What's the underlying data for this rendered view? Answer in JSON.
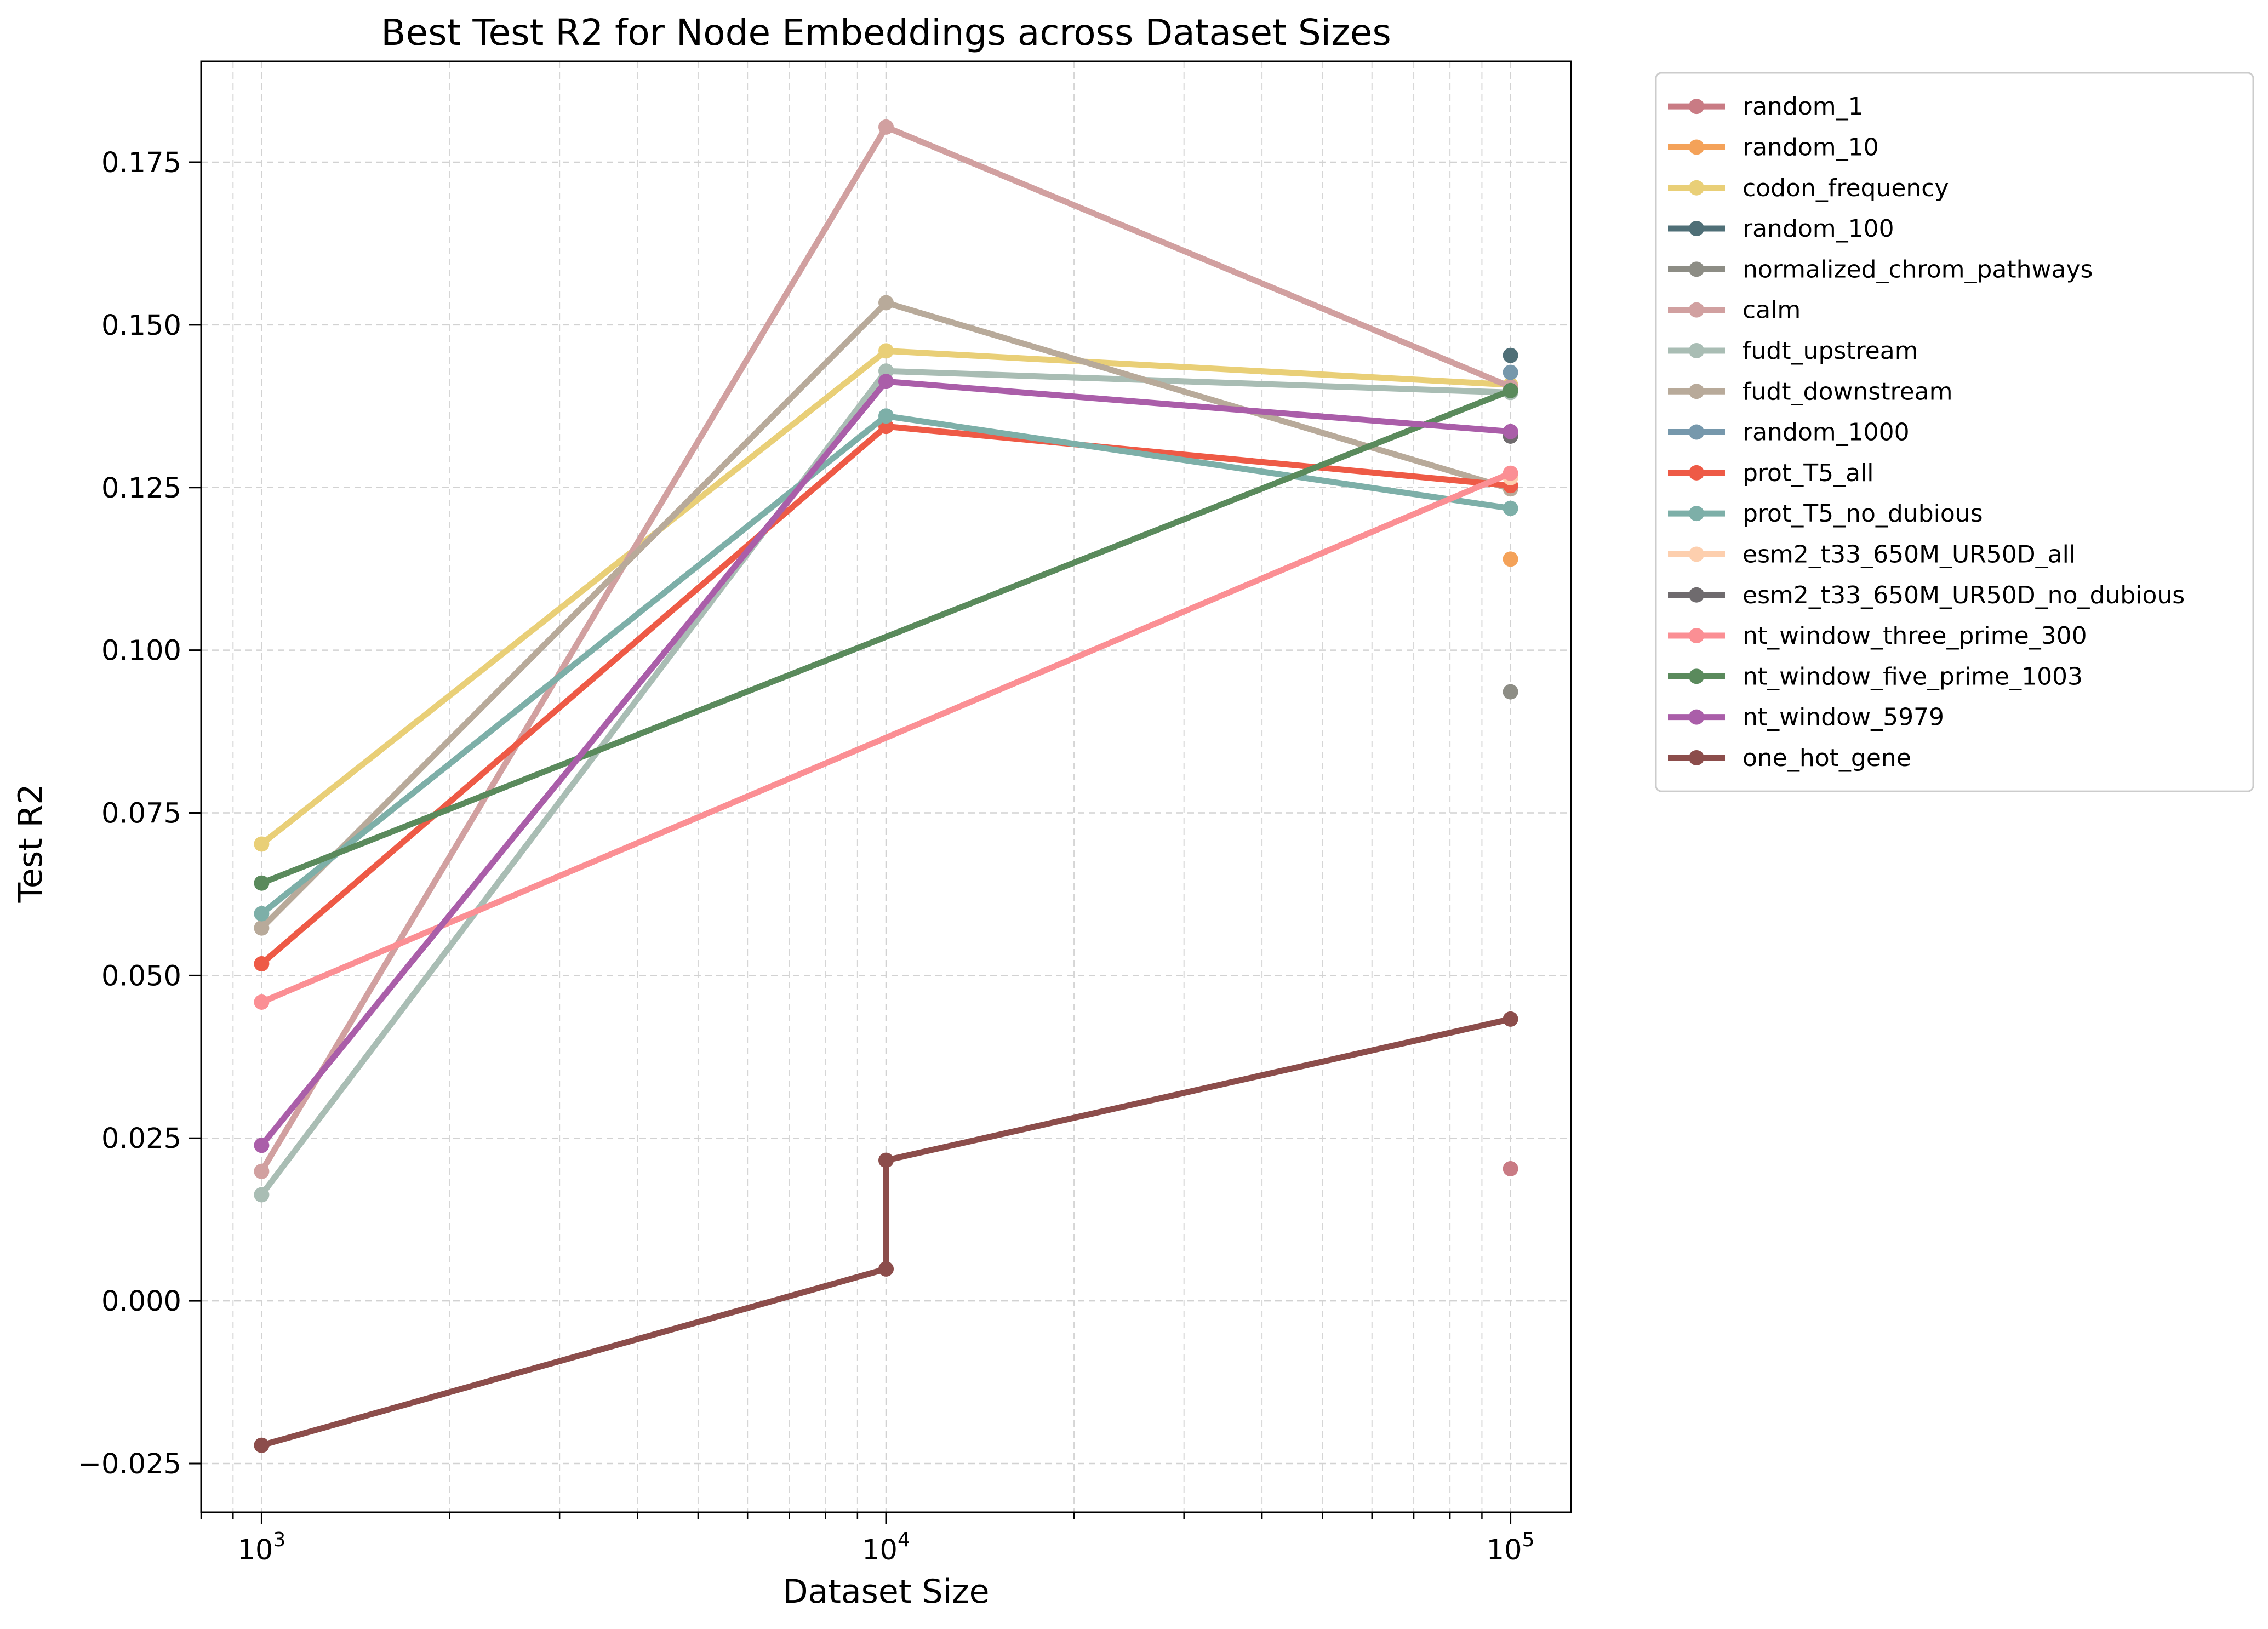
{
  "chart_data": {
    "type": "line",
    "title": "Best Test R2 for Node Embeddings across Dataset Sizes",
    "xlabel": "Dataset Size",
    "ylabel": "Test R2",
    "x_scale": "log",
    "xlim": [
      800,
      125000
    ],
    "ylim": [
      -0.0325,
      0.1905
    ],
    "x_ticks": [
      {
        "value": 1000,
        "base": "10",
        "exp": "3"
      },
      {
        "value": 10000,
        "base": "10",
        "exp": "4"
      },
      {
        "value": 100000,
        "base": "10",
        "exp": "5"
      }
    ],
    "y_ticks": [
      {
        "value": -0.025,
        "label": "−0.025"
      },
      {
        "value": 0.0,
        "label": "0.000"
      },
      {
        "value": 0.025,
        "label": "0.025"
      },
      {
        "value": 0.05,
        "label": "0.050"
      },
      {
        "value": 0.075,
        "label": "0.075"
      },
      {
        "value": 0.1,
        "label": "0.100"
      },
      {
        "value": 0.125,
        "label": "0.125"
      },
      {
        "value": 0.15,
        "label": "0.150"
      },
      {
        "value": 0.175,
        "label": "0.175"
      }
    ],
    "grid": true,
    "legend_position": "outside-right",
    "series": [
      {
        "name": "random_1",
        "color": "#c97b84",
        "points": [
          {
            "x": 100000,
            "y": 0.0203
          }
        ]
      },
      {
        "name": "random_10",
        "color": "#f4a259",
        "points": [
          {
            "x": 100000,
            "y": 0.114
          }
        ]
      },
      {
        "name": "codon_frequency",
        "color": "#e9cf77",
        "points": [
          {
            "x": 1000,
            "y": 0.0702
          },
          {
            "x": 10000,
            "y": 0.146
          },
          {
            "x": 100000,
            "y": 0.1408
          }
        ]
      },
      {
        "name": "random_100",
        "color": "#4f6f77",
        "points": [
          {
            "x": 100000,
            "y": 0.1453
          }
        ]
      },
      {
        "name": "normalized_chrom_pathways",
        "color": "#8d8d85",
        "points": [
          {
            "x": 100000,
            "y": 0.0936
          }
        ]
      },
      {
        "name": "calm",
        "color": "#d1a0a0",
        "points": [
          {
            "x": 1000,
            "y": 0.0199
          },
          {
            "x": 10000,
            "y": 0.1804
          },
          {
            "x": 100000,
            "y": 0.1405
          }
        ]
      },
      {
        "name": "fudt_upstream",
        "color": "#a9bdb4",
        "points": [
          {
            "x": 1000,
            "y": 0.0163
          },
          {
            "x": 10000,
            "y": 0.1429
          },
          {
            "x": 100000,
            "y": 0.1396
          }
        ]
      },
      {
        "name": "fudt_downstream",
        "color": "#b8aa9a",
        "points": [
          {
            "x": 1000,
            "y": 0.0573
          },
          {
            "x": 10000,
            "y": 0.1534
          },
          {
            "x": 100000,
            "y": 0.1248
          }
        ]
      },
      {
        "name": "random_1000",
        "color": "#7698ac",
        "points": [
          {
            "x": 100000,
            "y": 0.1427
          }
        ]
      },
      {
        "name": "prot_T5_all",
        "color": "#ee5a46",
        "points": [
          {
            "x": 1000,
            "y": 0.0518
          },
          {
            "x": 10000,
            "y": 0.1344
          },
          {
            "x": 100000,
            "y": 0.1253
          }
        ]
      },
      {
        "name": "prot_T5_no_dubious",
        "color": "#7dafa8",
        "points": [
          {
            "x": 1000,
            "y": 0.0595
          },
          {
            "x": 10000,
            "y": 0.136
          },
          {
            "x": 100000,
            "y": 0.1218
          }
        ]
      },
      {
        "name": "esm2_t33_650M_UR50D_all",
        "color": "#fdcfae",
        "points": [
          {
            "x": 100000,
            "y": 0.1265
          }
        ]
      },
      {
        "name": "esm2_t33_650M_UR50D_no_dubious",
        "color": "#6f6b6e",
        "points": [
          {
            "x": 100000,
            "y": 0.1329
          }
        ]
      },
      {
        "name": "nt_window_three_prime_300",
        "color": "#fb8f94",
        "points": [
          {
            "x": 1000,
            "y": 0.0459
          },
          {
            "x": 100000,
            "y": 0.1272
          }
        ]
      },
      {
        "name": "nt_window_five_prime_1003",
        "color": "#5a8a5c",
        "points": [
          {
            "x": 1000,
            "y": 0.0642
          },
          {
            "x": 100000,
            "y": 0.1399
          }
        ]
      },
      {
        "name": "nt_window_5979",
        "color": "#aa5ea9",
        "points": [
          {
            "x": 1000,
            "y": 0.0239
          },
          {
            "x": 10000,
            "y": 0.1413
          },
          {
            "x": 100000,
            "y": 0.1336
          }
        ]
      },
      {
        "name": "one_hot_gene",
        "color": "#8c4d4b",
        "points": [
          {
            "x": 1000,
            "y": -0.0222
          },
          {
            "x": 10000,
            "y": 0.0049
          },
          {
            "x": 10000,
            "y": 0.0216
          },
          {
            "x": 100000,
            "y": 0.0433
          }
        ]
      }
    ]
  }
}
